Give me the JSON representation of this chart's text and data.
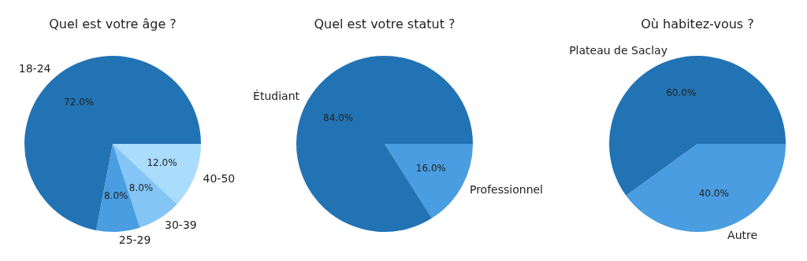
{
  "chart_data": [
    {
      "type": "pie",
      "title": "Quel est votre âge ?",
      "categories": [
        "18-24",
        "25-29",
        "30-39",
        "40-50"
      ],
      "values": [
        72,
        8,
        8,
        12
      ],
      "value_labels": [
        "72.0%",
        "8.0%",
        "8.0%",
        "12.0%"
      ],
      "colors": [
        "#2273b4",
        "#4a9de0",
        "#84c5f6",
        "#aadcfc"
      ]
    },
    {
      "type": "pie",
      "title": "Quel est votre statut ?",
      "categories": [
        "Étudiant",
        "Professionnel"
      ],
      "values": [
        84,
        16
      ],
      "value_labels": [
        "84.0%",
        "16.0%"
      ],
      "colors": [
        "#2273b4",
        "#4a9de0"
      ]
    },
    {
      "type": "pie",
      "title": "Où habitez-vous ?",
      "categories": [
        "Plateau de Saclay",
        "Autre"
      ],
      "values": [
        60,
        40
      ],
      "value_labels": [
        "60.0%",
        "40.0%"
      ],
      "colors": [
        "#2273b4",
        "#4a9de0"
      ]
    }
  ]
}
